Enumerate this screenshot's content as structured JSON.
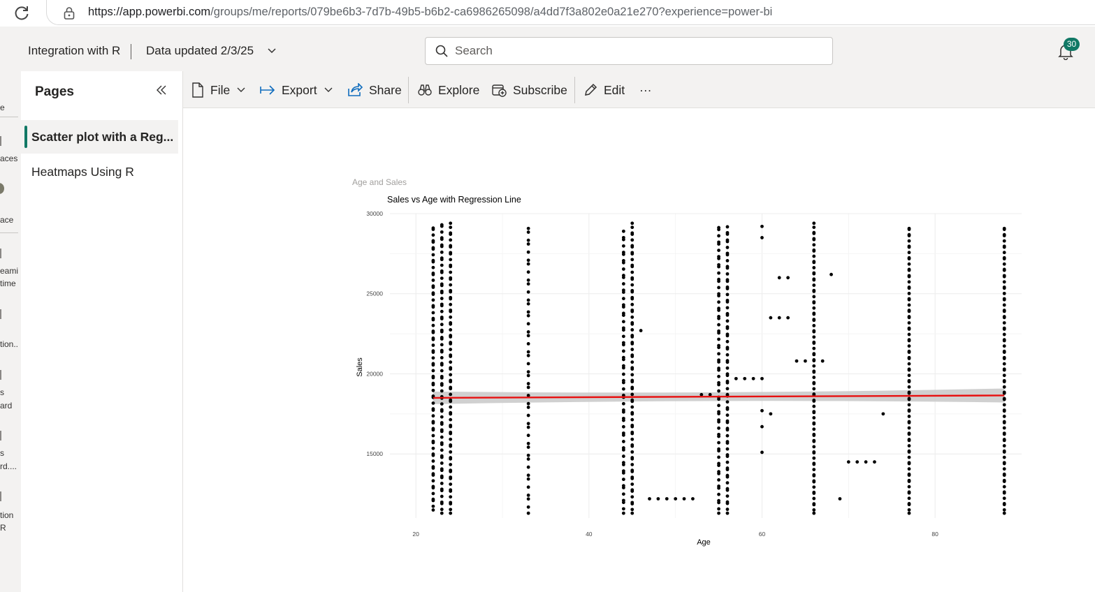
{
  "browser": {
    "url_host": "https://app.powerbi.com",
    "url_path": "/groups/me/reports/079be6b3-7d7b-49b5-b6b2-ca6986265098/a4dd7f3a802e0a21e270?experience=power-bi"
  },
  "header": {
    "report_name": "Integration with R",
    "data_updated": "Data updated 2/3/25",
    "search_placeholder": "Search",
    "notification_count": "30"
  },
  "left_nav": {
    "items": [
      "e",
      "aces",
      "ace",
      "eami",
      "time",
      "tion..",
      "s",
      "ard",
      "s",
      "rd....",
      "tion",
      "R"
    ]
  },
  "pages_pane": {
    "title": "Pages",
    "pages": [
      {
        "label": "Scatter plot with a Reg...",
        "active": true
      },
      {
        "label": "Heatmaps Using R",
        "active": false
      }
    ]
  },
  "toolbar": {
    "file": "File",
    "export": "Export",
    "share": "Share",
    "explore": "Explore",
    "subscribe": "Subscribe",
    "edit": "Edit",
    "more": "···"
  },
  "visual": {
    "title": "Age and Sales"
  },
  "chart_data": {
    "type": "scatter",
    "title": "Sales vs Age with Regression Line",
    "xlabel": "Age",
    "ylabel": "Sales",
    "xlim": [
      17,
      90
    ],
    "ylim": [
      11000,
      30000
    ],
    "xticks": [
      20,
      40,
      60,
      80
    ],
    "yticks": [
      15000,
      20000,
      25000,
      30000
    ],
    "grid": true,
    "point_color": "#000000",
    "regression": {
      "x": [
        22,
        88
      ],
      "y": [
        18500,
        18650
      ],
      "color": "#e81010",
      "band_color": "#c8c8c8"
    },
    "columns": [
      {
        "x": 22,
        "from": 11500,
        "to": 29200,
        "n": 70
      },
      {
        "x": 23,
        "from": 11300,
        "to": 29400,
        "n": 70
      },
      {
        "x": 24,
        "from": 11300,
        "to": 29400,
        "n": 72
      },
      {
        "x": 33,
        "from": 11300,
        "to": 29200,
        "n": 45
      },
      {
        "x": 44,
        "from": 11300,
        "to": 28900,
        "n": 60
      },
      {
        "x": 45,
        "from": 11300,
        "to": 29400,
        "n": 72
      },
      {
        "x": 55,
        "from": 11300,
        "to": 29200,
        "n": 62
      },
      {
        "x": 56,
        "from": 11300,
        "to": 29200,
        "n": 68
      },
      {
        "x": 66,
        "from": 11300,
        "to": 29400,
        "n": 80
      },
      {
        "x": 77,
        "from": 11300,
        "to": 29200,
        "n": 78
      },
      {
        "x": 88,
        "from": 11300,
        "to": 29200,
        "n": 78
      }
    ],
    "points": [
      [
        46,
        22700
      ],
      [
        47,
        12200
      ],
      [
        48,
        12200
      ],
      [
        49,
        12200
      ],
      [
        50,
        12200
      ],
      [
        51,
        12200
      ],
      [
        52,
        12200
      ],
      [
        53,
        18700
      ],
      [
        54,
        18700
      ],
      [
        57,
        19700
      ],
      [
        58,
        19700
      ],
      [
        59,
        19700
      ],
      [
        60,
        19700
      ],
      [
        60,
        29200
      ],
      [
        60,
        28500
      ],
      [
        60,
        17700
      ],
      [
        60,
        16700
      ],
      [
        60,
        15100
      ],
      [
        61,
        17500
      ],
      [
        61,
        23500
      ],
      [
        62,
        23500
      ],
      [
        63,
        23500
      ],
      [
        62,
        26000
      ],
      [
        63,
        26000
      ],
      [
        64,
        20800
      ],
      [
        65,
        20800
      ],
      [
        67,
        20800
      ],
      [
        68,
        26200
      ],
      [
        69,
        12200
      ],
      [
        70,
        14500
      ],
      [
        71,
        14500
      ],
      [
        72,
        14500
      ],
      [
        73,
        14500
      ],
      [
        74,
        17500
      ]
    ]
  }
}
